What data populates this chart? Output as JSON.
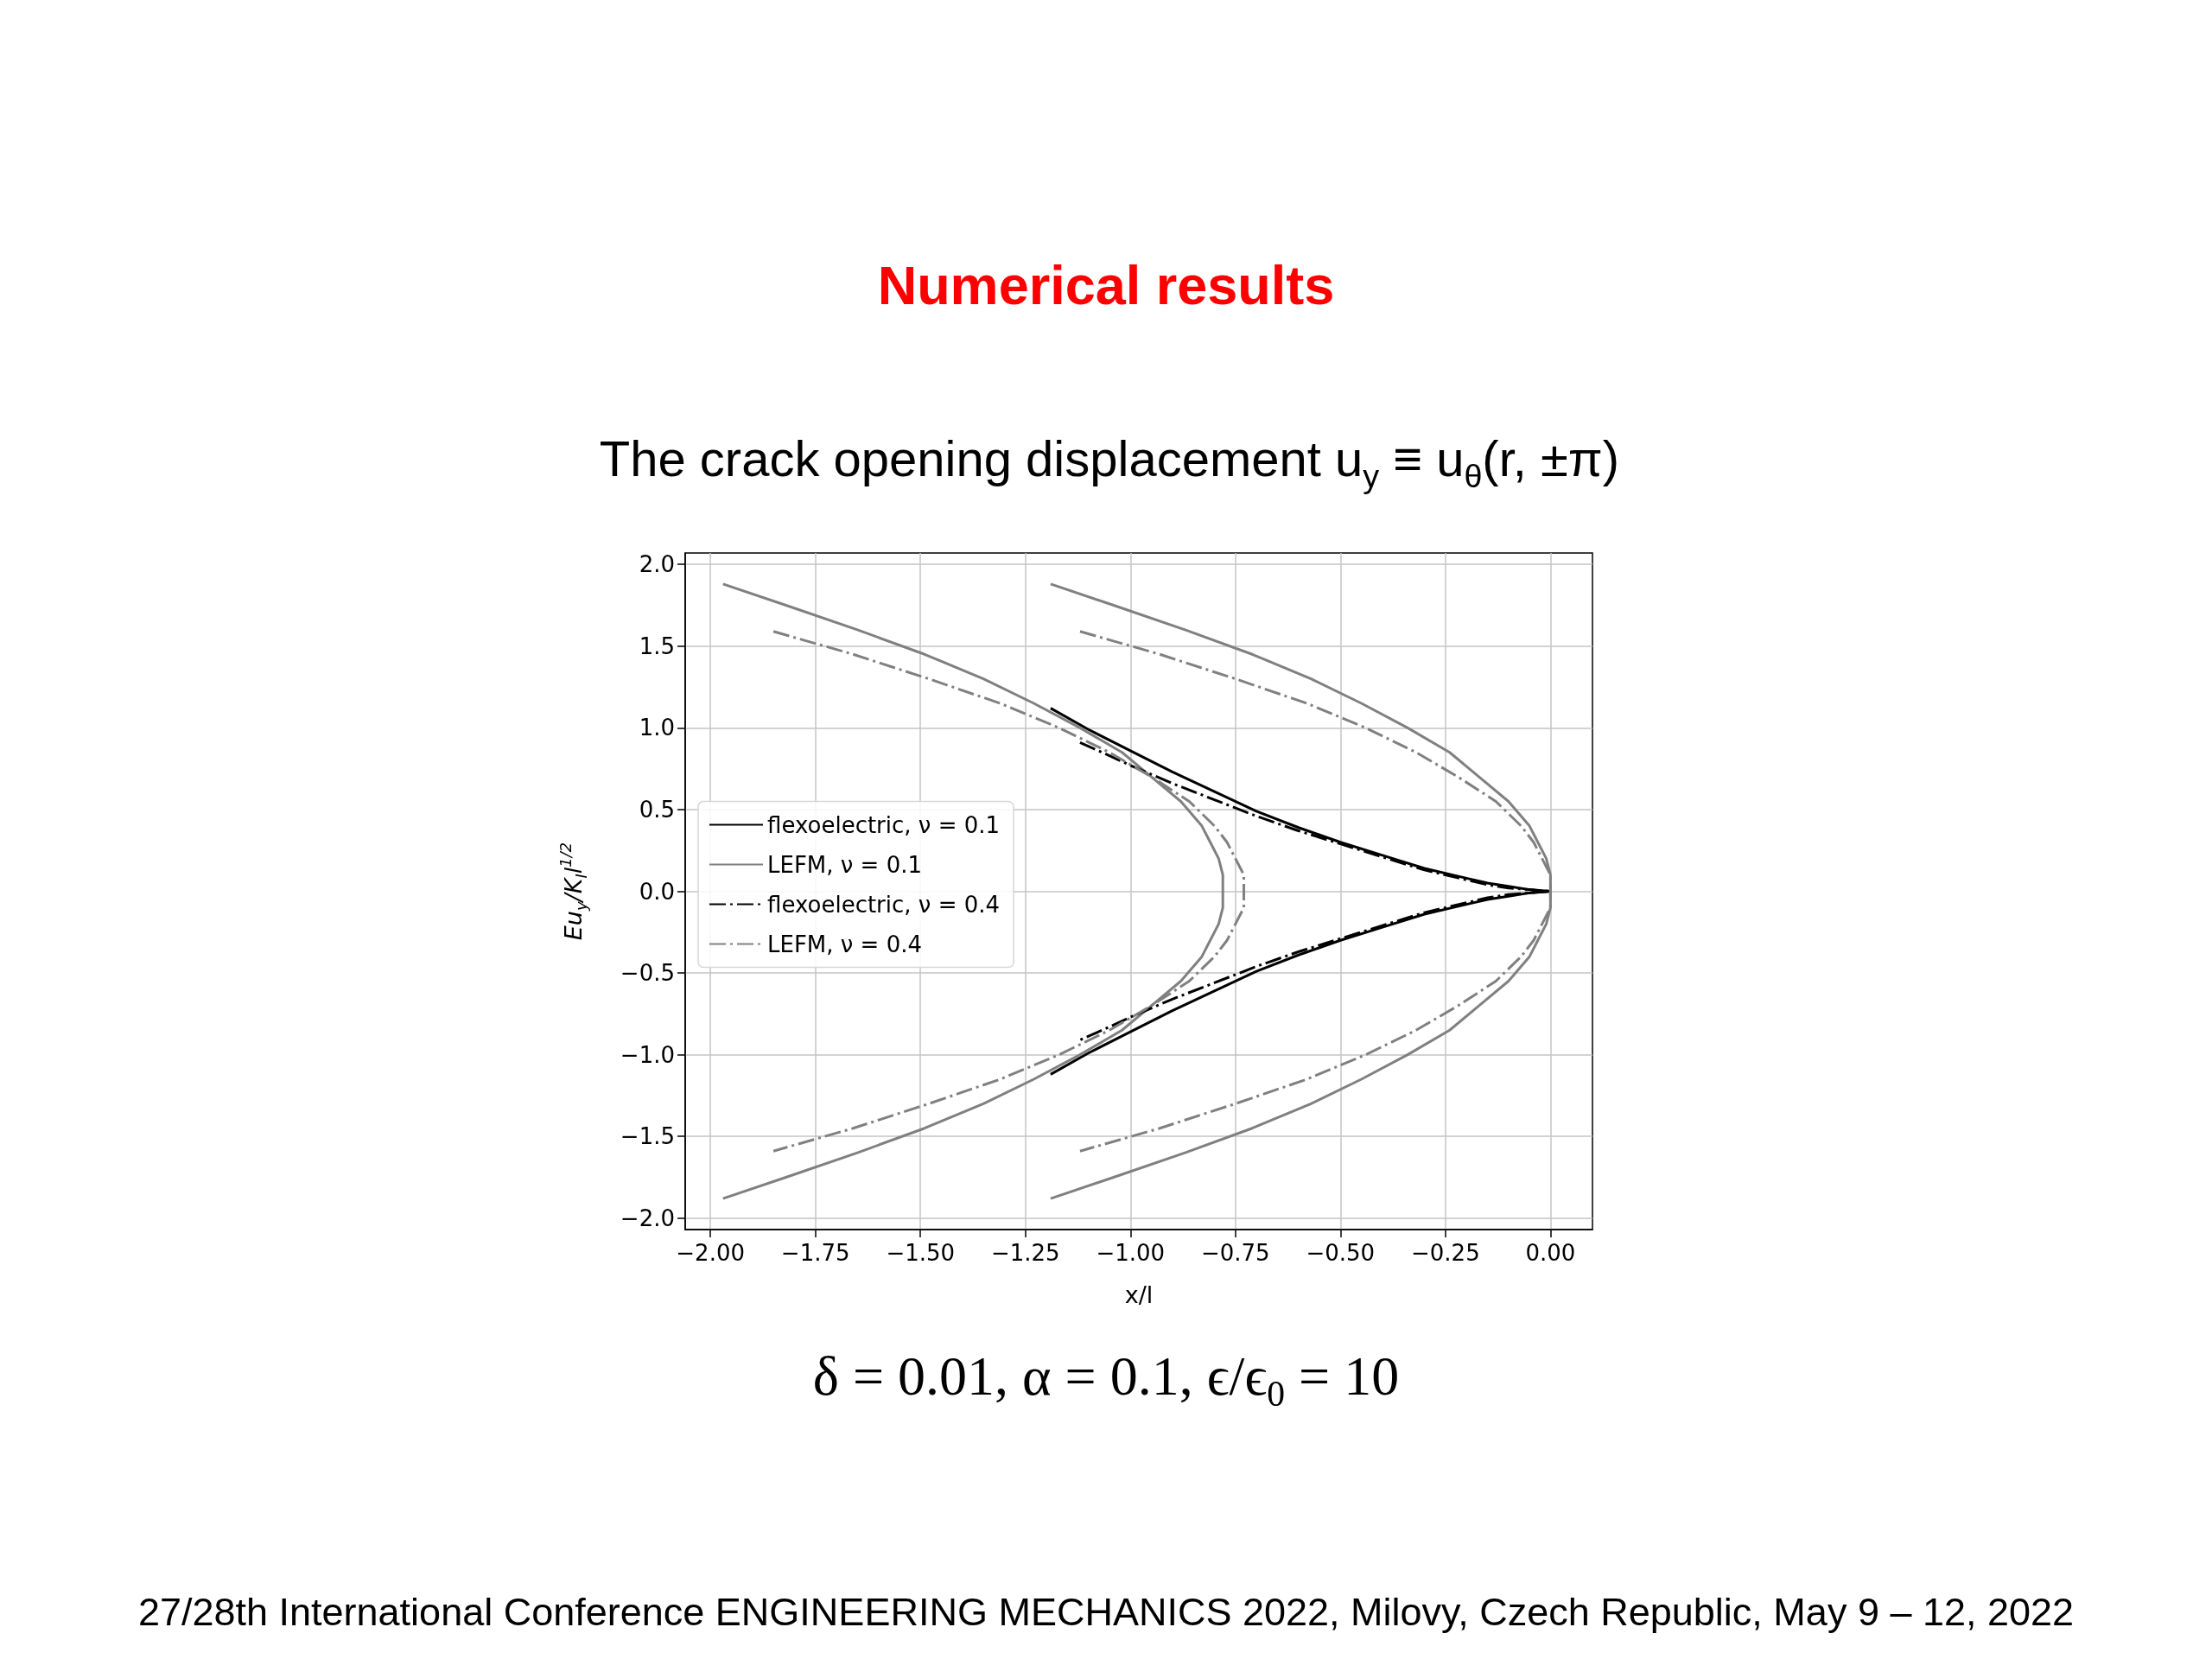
{
  "chart_data": {
    "type": "line",
    "title": "Numerical results",
    "subtitle": "The crack opening displacement u$_{y}$ ≡ u$_{θ}$(r, ±π)",
    "xlabel": "x/l",
    "ylabel": "Eu$_{y}$/K$_{I}$l$^{1/2}$",
    "annotations": [
      "δ = 0.01, α = 0.1,  ϵ/ϵ$_{0}$ = 10",
      "27/28th International Conference ENGINEERING MECHANICS 2022, Milovy, Czech Republic, May 9 – 12, 2022"
    ],
    "xlim": [
      -2.06,
      0.1
    ],
    "ylim": [
      -2.07,
      2.07
    ],
    "xticks": [
      {
        "value": -2,
        "label": "−2.00"
      },
      {
        "value": -1.75,
        "label": "−1.75"
      },
      {
        "value": -1.5,
        "label": "−1.50"
      },
      {
        "value": -1.25,
        "label": "−1.25"
      },
      {
        "value": -1,
        "label": "−1.00"
      },
      {
        "value": -0.75,
        "label": "−0.75"
      },
      {
        "value": -0.5,
        "label": "−0.50"
      },
      {
        "value": -0.25,
        "label": "−0.25"
      },
      {
        "value": 0,
        "label": "0.00"
      }
    ],
    "yticks": [
      {
        "value": -2,
        "label": "−2.0"
      },
      {
        "value": -1.5,
        "label": "−1.5"
      },
      {
        "value": -1,
        "label": "−1.0"
      },
      {
        "value": -0.5,
        "label": "−0.5"
      },
      {
        "value": 0,
        "label": "0.0"
      },
      {
        "value": 0.5,
        "label": "0.5"
      },
      {
        "value": 1,
        "label": "1.0"
      },
      {
        "value": 1.5,
        "label": "1.5"
      },
      {
        "value": 2,
        "label": "2.0"
      }
    ],
    "grid": true,
    "legend": "left",
    "series": [
      {
        "name": "flexoelectric, ν = 0.1",
        "color": "#000000",
        "line_style": "solid",
        "x": [
          -1.19,
          -1.1,
          -1.0,
          -0.9,
          -0.8,
          -0.7,
          -0.6,
          -0.5,
          -0.4,
          -0.3,
          -0.2,
          -0.15,
          -0.1,
          -0.05,
          0,
          -0.05,
          -0.1,
          -0.15,
          -0.2,
          -0.3,
          -0.4,
          -0.5,
          -0.6,
          -0.7,
          -0.8,
          -0.9,
          -1.0,
          -1.1,
          -1.19
        ],
        "values": [
          1.12,
          0.99,
          0.86,
          0.73,
          0.61,
          0.49,
          0.39,
          0.3,
          0.22,
          0.14,
          0.08,
          0.05,
          0.03,
          0.01,
          0,
          -0.01,
          -0.03,
          -0.05,
          -0.08,
          -0.14,
          -0.22,
          -0.3,
          -0.39,
          -0.49,
          -0.61,
          -0.73,
          -0.86,
          -0.99,
          -1.12
        ]
      },
      {
        "name": "LEFM, ν = 0.1",
        "color": "#808080",
        "line_style": "solid",
        "x": [
          -1.19,
          -1.04,
          -0.87,
          -0.71,
          -0.57,
          -0.45,
          -0.34,
          -0.24,
          -0.17,
          -0.1,
          -0.05,
          -0.03,
          -0.01,
          0,
          0,
          0,
          -0.01,
          -0.03,
          -0.05,
          -0.1,
          -0.17,
          -0.24,
          -0.34,
          -0.45,
          -0.57,
          -0.71,
          -0.87,
          -1.04,
          -1.19,
          null,
          -1.97,
          -1.82,
          -1.65,
          -1.49,
          -1.35,
          -1.23,
          -1.12,
          -1.02,
          -0.95,
          -0.88,
          -0.83,
          -0.81,
          -0.79,
          -0.78,
          -0.78,
          -0.78,
          -0.79,
          -0.81,
          -0.83,
          -0.88,
          -0.95,
          -1.02,
          -1.12,
          -1.23,
          -1.35,
          -1.49,
          -1.65,
          -1.82,
          -1.97
        ],
        "values": [
          1.88,
          1.75,
          1.6,
          1.45,
          1.3,
          1.15,
          1.0,
          0.85,
          0.7,
          0.55,
          0.4,
          0.3,
          0.2,
          0.1,
          0,
          -0.1,
          -0.2,
          -0.3,
          -0.4,
          -0.55,
          -0.7,
          -0.85,
          -1.0,
          -1.15,
          -1.3,
          -1.45,
          -1.6,
          -1.75,
          -1.88,
          null,
          1.88,
          1.75,
          1.6,
          1.45,
          1.3,
          1.15,
          1.0,
          0.85,
          0.7,
          0.55,
          0.4,
          0.3,
          0.2,
          0.1,
          0,
          -0.1,
          -0.2,
          -0.3,
          -0.4,
          -0.55,
          -0.7,
          -0.85,
          -1.0,
          -1.15,
          -1.3,
          -1.45,
          -1.6,
          -1.75,
          -1.88
        ]
      },
      {
        "name": "flexoelectric, ν = 0.4",
        "color": "#000000",
        "line_style": "dashdot",
        "x": [
          -1.12,
          -1.05,
          -1.0,
          -0.9,
          -0.8,
          -0.7,
          -0.6,
          -0.5,
          -0.4,
          -0.3,
          -0.2,
          -0.15,
          -0.1,
          -0.05,
          0,
          -0.05,
          -0.1,
          -0.15,
          -0.2,
          -0.3,
          -0.4,
          -0.5,
          -0.6,
          -0.7,
          -0.8,
          -0.9,
          -1.0,
          -1.05,
          -1.12
        ],
        "values": [
          0.91,
          0.83,
          0.77,
          0.66,
          0.56,
          0.46,
          0.37,
          0.29,
          0.21,
          0.13,
          0.07,
          0.04,
          0.02,
          0.01,
          0,
          -0.01,
          -0.02,
          -0.04,
          -0.07,
          -0.13,
          -0.21,
          -0.29,
          -0.37,
          -0.46,
          -0.56,
          -0.66,
          -0.77,
          -0.83,
          -0.91
        ]
      },
      {
        "name": "LEFM, ν = 0.4",
        "color": "#808080",
        "line_style": "dashdot",
        "x": [
          -1.12,
          -0.93,
          -0.75,
          -0.58,
          -0.44,
          -0.32,
          -0.22,
          -0.13,
          -0.07,
          -0.04,
          -0.02,
          0,
          0,
          0,
          -0.02,
          -0.04,
          -0.07,
          -0.13,
          -0.22,
          -0.32,
          -0.44,
          -0.58,
          -0.75,
          -0.93,
          -1.12,
          null,
          -1.85,
          -1.66,
          -1.48,
          -1.31,
          -1.17,
          -1.05,
          -0.95,
          -0.86,
          -0.8,
          -0.77,
          -0.75,
          -0.73,
          -0.73,
          -0.73,
          -0.75,
          -0.77,
          -0.8,
          -0.86,
          -0.95,
          -1.05,
          -1.17,
          -1.31,
          -1.48,
          -1.66,
          -1.85
        ],
        "values": [
          1.59,
          1.45,
          1.3,
          1.15,
          1.0,
          0.85,
          0.7,
          0.55,
          0.4,
          0.3,
          0.2,
          0.1,
          0,
          -0.1,
          -0.2,
          -0.3,
          -0.4,
          -0.55,
          -0.7,
          -0.85,
          -1.0,
          -1.15,
          -1.3,
          -1.45,
          -1.59,
          null,
          1.59,
          1.45,
          1.3,
          1.15,
          1.0,
          0.85,
          0.7,
          0.55,
          0.4,
          0.3,
          0.2,
          0.1,
          0,
          -0.1,
          -0.2,
          -0.3,
          -0.4,
          -0.55,
          -0.7,
          -0.85,
          -1.0,
          -1.15,
          -1.3,
          -1.45,
          -1.59
        ]
      }
    ]
  }
}
